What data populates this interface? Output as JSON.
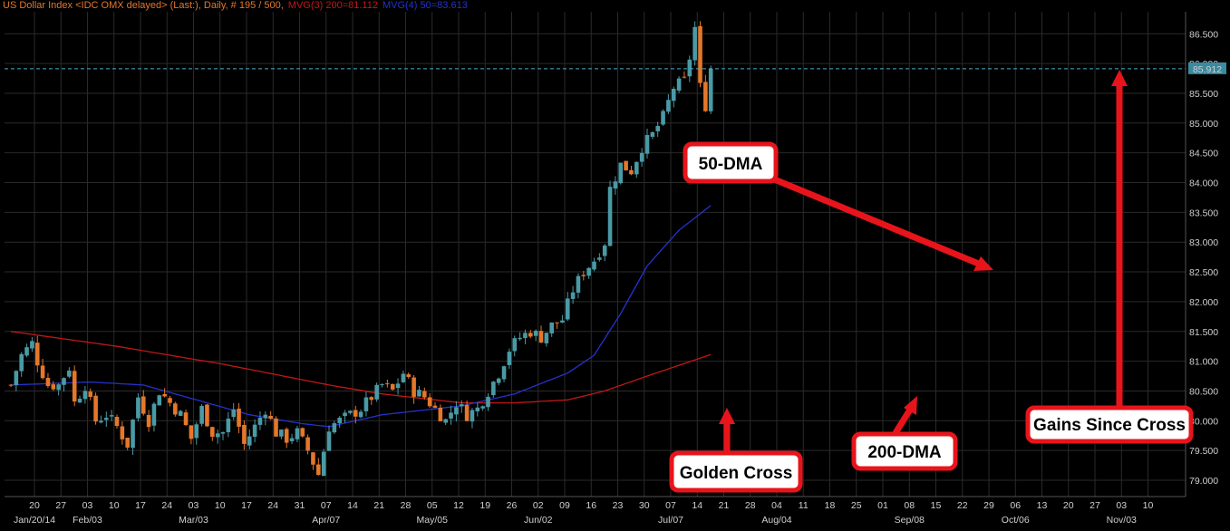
{
  "header": {
    "title": "US Dollar Index <IDC OMX delayed> (Last:), Daily, # 195 / 500,",
    "ma200_text": "MVG(3) 200=81.112",
    "ma50_text": "MVG(4) 50=83.613"
  },
  "last_price_label": "85.912",
  "annotations": {
    "dma50": "50-DMA",
    "golden_cross": "Golden Cross",
    "dma200": "200-DMA",
    "gains": "Gains Since Cross"
  },
  "colors": {
    "background": "#000000",
    "grid": "#2a2a2a",
    "up": "#4a9aa6",
    "down": "#e5772a",
    "ma50": "#2432cc",
    "ma200": "#c01818",
    "annotation": "#e8141b",
    "last_price": "#4aaeca"
  },
  "chart_data": {
    "type": "candlestick",
    "title": "US Dollar Index <IDC OMX delayed> (Last:), Daily, # 195 / 500,",
    "ylim": [
      78.8,
      86.9
    ],
    "y_ticks": [
      "79.000",
      "79.500",
      "80.000",
      "80.500",
      "81.000",
      "81.500",
      "82.000",
      "82.500",
      "83.000",
      "83.500",
      "84.000",
      "84.500",
      "85.000",
      "85.500",
      "86.000",
      "86.500"
    ],
    "x_day_labels": [
      "20",
      "27",
      "03",
      "10",
      "17",
      "24",
      "03",
      "10",
      "17",
      "24",
      "31",
      "07",
      "14",
      "21",
      "28",
      "05",
      "12",
      "19",
      "26",
      "02",
      "09",
      "16",
      "23",
      "30",
      "07",
      "14",
      "21",
      "28",
      "04",
      "11",
      "18",
      "25",
      "01",
      "08",
      "15",
      "22",
      "29",
      "06",
      "13",
      "20",
      "27",
      "03",
      "10"
    ],
    "x_month_labels": [
      {
        "text": "Jan/20/14",
        "at": 0
      },
      {
        "text": "Feb/03",
        "at": 2
      },
      {
        "text": "Mar/03",
        "at": 6
      },
      {
        "text": "Apr/07",
        "at": 11
      },
      {
        "text": "May/05",
        "at": 15
      },
      {
        "text": "Jun/02",
        "at": 19
      },
      {
        "text": "Jul/07",
        "at": 24
      },
      {
        "text": "Aug/04",
        "at": 28
      },
      {
        "text": "Sep/08",
        "at": 33
      },
      {
        "text": "Oct/06",
        "at": 37
      },
      {
        "text": "Nov/03",
        "at": 41
      }
    ],
    "last_price": 85.912,
    "close_anchors": [
      [
        0,
        80.6
      ],
      [
        2,
        81.1
      ],
      [
        4,
        81.3
      ],
      [
        5,
        81.0
      ],
      [
        7,
        80.6
      ],
      [
        9,
        80.6
      ],
      [
        11,
        80.9
      ],
      [
        12,
        80.3
      ],
      [
        14,
        80.6
      ],
      [
        16,
        80.0
      ],
      [
        18,
        80.1
      ],
      [
        20,
        79.9
      ],
      [
        22,
        79.6
      ],
      [
        24,
        80.4
      ],
      [
        26,
        80.0
      ],
      [
        28,
        80.5
      ],
      [
        30,
        80.3
      ],
      [
        32,
        80.1
      ],
      [
        34,
        79.7
      ],
      [
        36,
        80.2
      ],
      [
        38,
        79.8
      ],
      [
        40,
        79.8
      ],
      [
        42,
        80.2
      ],
      [
        44,
        79.6
      ],
      [
        46,
        79.9
      ],
      [
        48,
        80.2
      ],
      [
        50,
        79.8
      ],
      [
        52,
        79.7
      ],
      [
        54,
        79.8
      ],
      [
        56,
        79.5
      ],
      [
        58,
        79.1
      ],
      [
        60,
        79.9
      ],
      [
        62,
        80.0
      ],
      [
        64,
        80.1
      ],
      [
        66,
        80.2
      ],
      [
        68,
        80.4
      ],
      [
        70,
        80.6
      ],
      [
        72,
        80.5
      ],
      [
        74,
        80.8
      ],
      [
        76,
        80.5
      ],
      [
        78,
        80.4
      ],
      [
        80,
        80.2
      ],
      [
        82,
        80.0
      ],
      [
        84,
        80.3
      ],
      [
        86,
        80.1
      ],
      [
        88,
        80.2
      ],
      [
        90,
        80.5
      ],
      [
        92,
        80.8
      ],
      [
        94,
        81.2
      ],
      [
        96,
        81.4
      ],
      [
        98,
        81.5
      ],
      [
        100,
        81.4
      ],
      [
        102,
        81.6
      ],
      [
        104,
        81.7
      ],
      [
        106,
        82.2
      ],
      [
        108,
        82.5
      ],
      [
        110,
        82.7
      ],
      [
        112,
        83.0
      ],
      [
        113,
        83.9
      ],
      [
        115,
        84.3
      ],
      [
        117,
        84.2
      ],
      [
        119,
        84.6
      ],
      [
        121,
        84.8
      ],
      [
        123,
        85.1
      ],
      [
        125,
        85.6
      ],
      [
        127,
        85.7
      ],
      [
        128,
        86.1
      ],
      [
        129,
        86.6
      ],
      [
        130,
        85.6
      ],
      [
        131,
        85.3
      ],
      [
        132,
        85.912
      ]
    ],
    "series": [
      {
        "name": "MVG(3) 200",
        "color": "#c01818",
        "anchors": [
          [
            0,
            81.5
          ],
          [
            20,
            81.25
          ],
          [
            40,
            80.95
          ],
          [
            60,
            80.6
          ],
          [
            70,
            80.45
          ],
          [
            85,
            80.3
          ],
          [
            95,
            80.3
          ],
          [
            105,
            80.35
          ],
          [
            112,
            80.5
          ],
          [
            120,
            80.75
          ],
          [
            132,
            81.112
          ]
        ]
      },
      {
        "name": "MVG(4) 50",
        "color": "#2432cc",
        "anchors": [
          [
            0,
            80.6
          ],
          [
            15,
            80.65
          ],
          [
            25,
            80.6
          ],
          [
            35,
            80.35
          ],
          [
            45,
            80.1
          ],
          [
            55,
            79.95
          ],
          [
            60,
            79.9
          ],
          [
            70,
            80.1
          ],
          [
            85,
            80.25
          ],
          [
            95,
            80.45
          ],
          [
            105,
            80.8
          ],
          [
            110,
            81.1
          ],
          [
            115,
            81.8
          ],
          [
            120,
            82.6
          ],
          [
            126,
            83.2
          ],
          [
            132,
            83.613
          ]
        ]
      }
    ],
    "legend": "header-top-left",
    "grid": true
  }
}
